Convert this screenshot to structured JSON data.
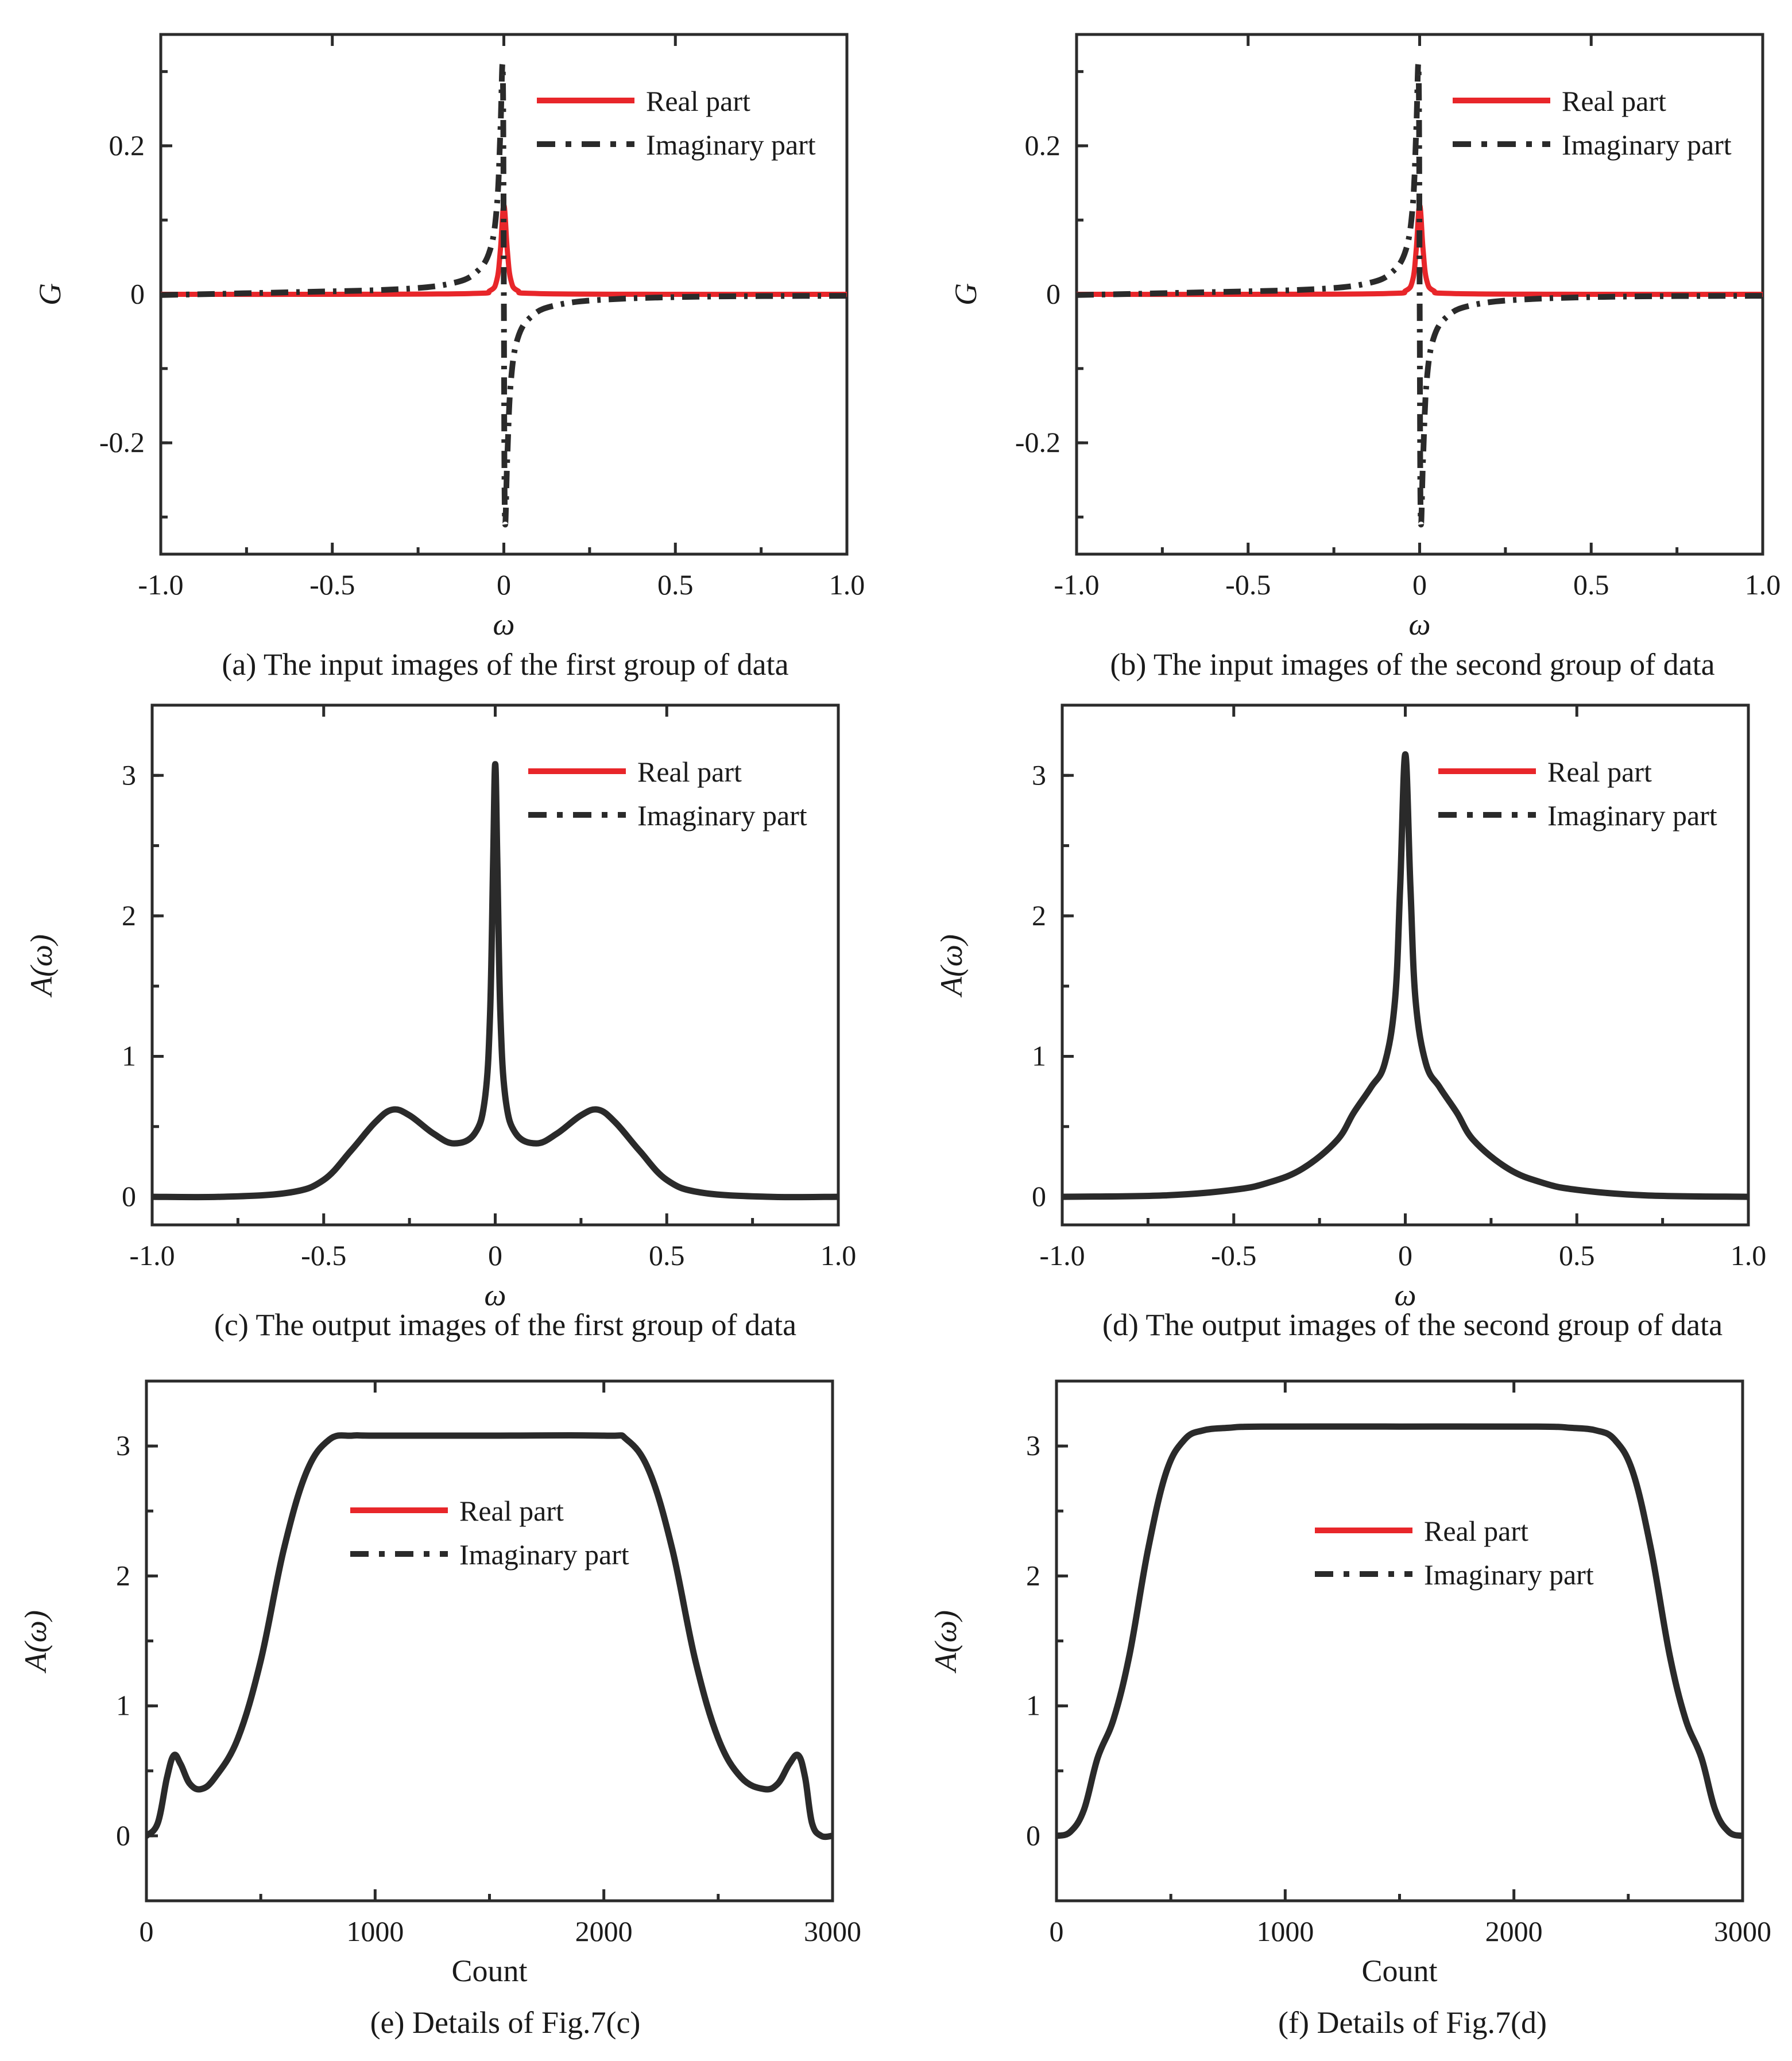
{
  "chart_data": [
    {
      "id": "a",
      "type": "line",
      "caption": "(a) The input images of the first group of data",
      "xlabel": "ω",
      "ylabel": "G",
      "xlim": [
        -1.0,
        1.0
      ],
      "ylim": [
        -0.35,
        0.35
      ],
      "xticks": [
        -1.0,
        -0.5,
        0,
        0.5,
        1.0
      ],
      "xtick_labels": [
        "-1.0",
        "-0.5",
        "0",
        "0.5",
        "1.0"
      ],
      "yticks": [
        -0.2,
        0,
        0.2
      ],
      "ytick_labels": [
        "-0.2",
        "0",
        "0.2"
      ],
      "legend": [
        "Real part",
        "Imaginary part"
      ],
      "legend_position": "top-right",
      "series": [
        {
          "name": "Real part",
          "style": "solid",
          "color": "#e8262a",
          "x": [
            -1.0,
            -0.5,
            -0.1,
            -0.04,
            -0.02,
            -0.01,
            0.0,
            0.01,
            0.02,
            0.04,
            0.1,
            0.5,
            1.0
          ],
          "y": [
            0,
            0,
            0.001,
            0.005,
            0.02,
            0.06,
            0.12,
            0.06,
            0.02,
            0.005,
            0.001,
            0,
            0
          ]
        },
        {
          "name": "Imaginary part",
          "style": "dashdot",
          "color": "#2a2a2a",
          "x": [
            -1.0,
            -0.6,
            -0.3,
            -0.15,
            -0.08,
            -0.04,
            -0.02,
            -0.01,
            -0.003,
            0.0,
            0.003,
            0.01,
            0.02,
            0.04,
            0.08,
            0.15,
            0.3,
            0.6,
            1.0
          ],
          "y": [
            -0.001,
            0.003,
            0.007,
            0.015,
            0.03,
            0.06,
            0.12,
            0.22,
            0.3,
            0,
            -0.3,
            -0.22,
            -0.12,
            -0.06,
            -0.03,
            -0.015,
            -0.007,
            -0.003,
            -0.002
          ]
        }
      ]
    },
    {
      "id": "b",
      "type": "line",
      "caption": "(b) The input images of the second group of data",
      "xlabel": "ω",
      "ylabel": "G",
      "xlim": [
        -1.0,
        1.0
      ],
      "ylim": [
        -0.35,
        0.35
      ],
      "xticks": [
        -1.0,
        -0.5,
        0,
        0.5,
        1.0
      ],
      "xtick_labels": [
        "-1.0",
        "-0.5",
        "0",
        "0.5",
        "1.0"
      ],
      "yticks": [
        -0.2,
        0,
        0.2
      ],
      "ytick_labels": [
        "-0.2",
        "0",
        "0.2"
      ],
      "legend": [
        "Real part",
        "Imaginary part"
      ],
      "legend_position": "top-right",
      "series": [
        {
          "name": "Real part",
          "style": "solid",
          "color": "#e8262a",
          "x": [
            -1.0,
            -0.5,
            -0.1,
            -0.04,
            -0.02,
            -0.01,
            0.0,
            0.01,
            0.02,
            0.04,
            0.1,
            0.5,
            1.0
          ],
          "y": [
            0,
            0,
            0.001,
            0.005,
            0.02,
            0.06,
            0.12,
            0.06,
            0.02,
            0.005,
            0.001,
            0,
            0
          ]
        },
        {
          "name": "Imaginary part",
          "style": "dashdot",
          "color": "#2a2a2a",
          "x": [
            -1.0,
            -0.6,
            -0.3,
            -0.15,
            -0.08,
            -0.04,
            -0.02,
            -0.01,
            -0.003,
            0.0,
            0.003,
            0.01,
            0.02,
            0.04,
            0.08,
            0.15,
            0.3,
            0.6,
            1.0
          ],
          "y": [
            -0.001,
            0.003,
            0.007,
            0.015,
            0.03,
            0.06,
            0.12,
            0.22,
            0.3,
            0,
            -0.3,
            -0.22,
            -0.12,
            -0.06,
            -0.03,
            -0.015,
            -0.007,
            -0.003,
            -0.002
          ]
        }
      ]
    },
    {
      "id": "c",
      "type": "line",
      "caption": "(c) The output images of the first group of data",
      "xlabel": "ω",
      "ylabel": "A(ω)",
      "xlim": [
        -1.0,
        1.0
      ],
      "ylim": [
        -0.2,
        3.5
      ],
      "xticks": [
        -1.0,
        -0.5,
        0,
        0.5,
        1.0
      ],
      "xtick_labels": [
        "-1.0",
        "-0.5",
        "0",
        "0.5",
        "1.0"
      ],
      "yticks": [
        0,
        1,
        2,
        3
      ],
      "ytick_labels": [
        "0",
        "1",
        "2",
        "3"
      ],
      "legend": [
        "Real part",
        "Imaginary part"
      ],
      "legend_position": "top-right",
      "series": [
        {
          "name": "A(ω)",
          "style": "solid",
          "color": "#2a2a2a",
          "x": [
            -1.0,
            -0.8,
            -0.6,
            -0.5,
            -0.42,
            -0.35,
            -0.3,
            -0.25,
            -0.18,
            -0.12,
            -0.06,
            -0.03,
            -0.015,
            -0.006,
            0.0,
            0.006,
            0.015,
            0.03,
            0.06,
            0.12,
            0.18,
            0.25,
            0.3,
            0.35,
            0.42,
            0.5,
            0.6,
            0.8,
            1.0
          ],
          "y": [
            0,
            0,
            0.03,
            0.12,
            0.33,
            0.53,
            0.62,
            0.58,
            0.45,
            0.38,
            0.45,
            0.7,
            1.3,
            2.4,
            3.08,
            2.4,
            1.3,
            0.7,
            0.45,
            0.38,
            0.45,
            0.58,
            0.62,
            0.53,
            0.33,
            0.12,
            0.03,
            0,
            0
          ]
        }
      ]
    },
    {
      "id": "d",
      "type": "line",
      "caption": "(d) The output images of the second group of data",
      "xlabel": "ω",
      "ylabel": "A(ω)",
      "xlim": [
        -1.0,
        1.0
      ],
      "ylim": [
        -0.2,
        3.5
      ],
      "xticks": [
        -1.0,
        -0.5,
        0,
        0.5,
        1.0
      ],
      "xtick_labels": [
        "-1.0",
        "-0.5",
        "0",
        "0.5",
        "1.0"
      ],
      "yticks": [
        0,
        1,
        2,
        3
      ],
      "ytick_labels": [
        "0",
        "1",
        "2",
        "3"
      ],
      "legend": [
        "Real part",
        "Imaginary part"
      ],
      "legend_position": "top-right",
      "series": [
        {
          "name": "A(ω)",
          "style": "solid",
          "color": "#2a2a2a",
          "x": [
            -1.0,
            -0.7,
            -0.5,
            -0.4,
            -0.3,
            -0.2,
            -0.15,
            -0.1,
            -0.06,
            -0.03,
            -0.015,
            0.0,
            0.015,
            0.03,
            0.06,
            0.1,
            0.15,
            0.2,
            0.3,
            0.4,
            0.5,
            0.7,
            1.0
          ],
          "y": [
            0,
            0.01,
            0.05,
            0.1,
            0.2,
            0.4,
            0.6,
            0.78,
            0.95,
            1.4,
            2.2,
            3.15,
            2.2,
            1.4,
            0.95,
            0.78,
            0.6,
            0.4,
            0.2,
            0.1,
            0.05,
            0.01,
            0
          ]
        }
      ]
    },
    {
      "id": "e",
      "type": "line",
      "caption": "(e) Details of Fig.7(c)",
      "xlabel": "Count",
      "ylabel": "A(ω)",
      "xlim": [
        0,
        3000
      ],
      "ylim": [
        -0.5,
        3.5
      ],
      "xticks": [
        0,
        1000,
        2000,
        3000
      ],
      "xtick_labels": [
        "0",
        "1000",
        "2000",
        "3000"
      ],
      "yticks": [
        0,
        1,
        2,
        3
      ],
      "ytick_labels": [
        "0",
        "1",
        "2",
        "3"
      ],
      "legend": [
        "Real part",
        "Imaginary part"
      ],
      "legend_position": "upper-center",
      "series": [
        {
          "name": "A(ω)",
          "style": "solid",
          "color": "#2a2a2a",
          "x": [
            0,
            50,
            90,
            120,
            150,
            190,
            240,
            300,
            400,
            500,
            600,
            700,
            800,
            900,
            1000,
            1500,
            2000,
            2100,
            2200,
            2300,
            2400,
            2500,
            2600,
            2700,
            2760,
            2810,
            2850,
            2880,
            2910,
            2950,
            3000
          ],
          "y": [
            0,
            0.1,
            0.45,
            0.62,
            0.55,
            0.4,
            0.36,
            0.45,
            0.75,
            1.35,
            2.2,
            2.8,
            3.05,
            3.08,
            3.08,
            3.08,
            3.08,
            3.05,
            2.8,
            2.2,
            1.35,
            0.75,
            0.45,
            0.36,
            0.4,
            0.55,
            0.62,
            0.45,
            0.1,
            0,
            0
          ]
        }
      ]
    },
    {
      "id": "f",
      "type": "line",
      "caption": "(f) Details of Fig.7(d)",
      "xlabel": "Count",
      "ylabel": "A(ω)",
      "xlim": [
        0,
        3000
      ],
      "ylim": [
        -0.5,
        3.5
      ],
      "xticks": [
        0,
        1000,
        2000,
        3000
      ],
      "xtick_labels": [
        "0",
        "1000",
        "2000",
        "3000"
      ],
      "yticks": [
        0,
        1,
        2,
        3
      ],
      "ytick_labels": [
        "0",
        "1",
        "2",
        "3"
      ],
      "legend": [
        "Real part",
        "Imaginary part"
      ],
      "legend_position": "center-right",
      "series": [
        {
          "name": "A(ω)",
          "style": "solid",
          "color": "#2a2a2a",
          "x": [
            0,
            60,
            120,
            180,
            250,
            320,
            400,
            480,
            560,
            640,
            750,
            900,
            1500,
            2100,
            2250,
            2360,
            2440,
            2520,
            2600,
            2680,
            2750,
            2820,
            2880,
            2940,
            3000
          ],
          "y": [
            0,
            0.03,
            0.2,
            0.6,
            0.9,
            1.4,
            2.2,
            2.8,
            3.05,
            3.12,
            3.14,
            3.15,
            3.15,
            3.15,
            3.14,
            3.12,
            3.05,
            2.8,
            2.2,
            1.4,
            0.9,
            0.6,
            0.2,
            0.03,
            0
          ]
        }
      ]
    }
  ]
}
